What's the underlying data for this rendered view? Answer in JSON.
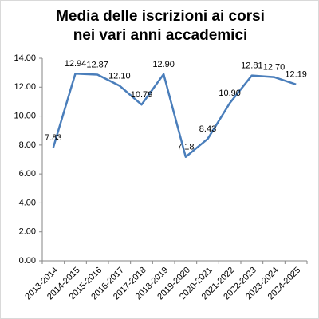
{
  "chart_data": {
    "type": "line",
    "title": "Media delle iscrizioni ai corsi nei vari anni accademici",
    "categories": [
      "2013-2014",
      "2014-2015",
      "2015-2016",
      "2016-2017",
      "2017-2018",
      "2018-2019",
      "2019-2020",
      "2020-2021",
      "2021-2022",
      "2022-2023",
      "2023-2024",
      "2024-2025"
    ],
    "series": [
      {
        "color": "#4a7ebb",
        "values": [
          7.83,
          12.94,
          12.87,
          12.1,
          10.79,
          12.9,
          7.18,
          8.43,
          10.9,
          12.81,
          12.7,
          12.19
        ],
        "value_labels": [
          "7.83",
          "12.94",
          "12.87",
          "12.10",
          "10.79",
          "12.90",
          "7.18",
          "8.43",
          "10.90",
          "12.81",
          "12.70",
          "12.19"
        ]
      }
    ],
    "ylim": [
      0,
      14
    ],
    "yticks": [
      {
        "value": 0,
        "label": "0.00"
      },
      {
        "value": 2,
        "label": "2.00"
      },
      {
        "value": 4,
        "label": "4.00"
      },
      {
        "value": 6,
        "label": "6.00"
      },
      {
        "value": 8,
        "label": "8.00"
      },
      {
        "value": 10,
        "label": "10.00"
      },
      {
        "value": 12,
        "label": "12.00"
      },
      {
        "value": 14,
        "label": "14.00"
      }
    ],
    "grid": false
  }
}
